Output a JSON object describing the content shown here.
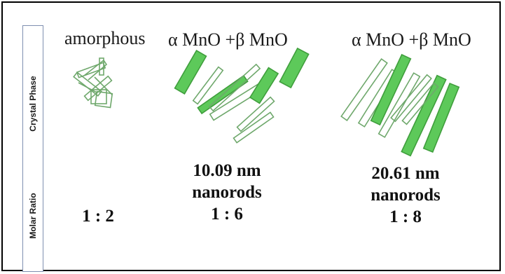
{
  "side_labels": {
    "crystal_phase": "Crystal Phase",
    "molar_ratio": "Molar Ratio"
  },
  "columns": [
    {
      "phase": "amorphous",
      "ratio": "1 : 2"
    },
    {
      "phase": "α MnO +β MnO",
      "size": "10.09 nm",
      "shape": "nanorods",
      "ratio": "1 : 6"
    },
    {
      "phase": "α MnO +β MnO",
      "size": "20.61 nm",
      "shape": "nanorods",
      "ratio": "1 : 8"
    }
  ],
  "colors": {
    "solid_rod": "#5dc95a",
    "rod_outline": "#3f9e3c",
    "hollow_outline": "#6fa86c",
    "frame": "#000000"
  }
}
